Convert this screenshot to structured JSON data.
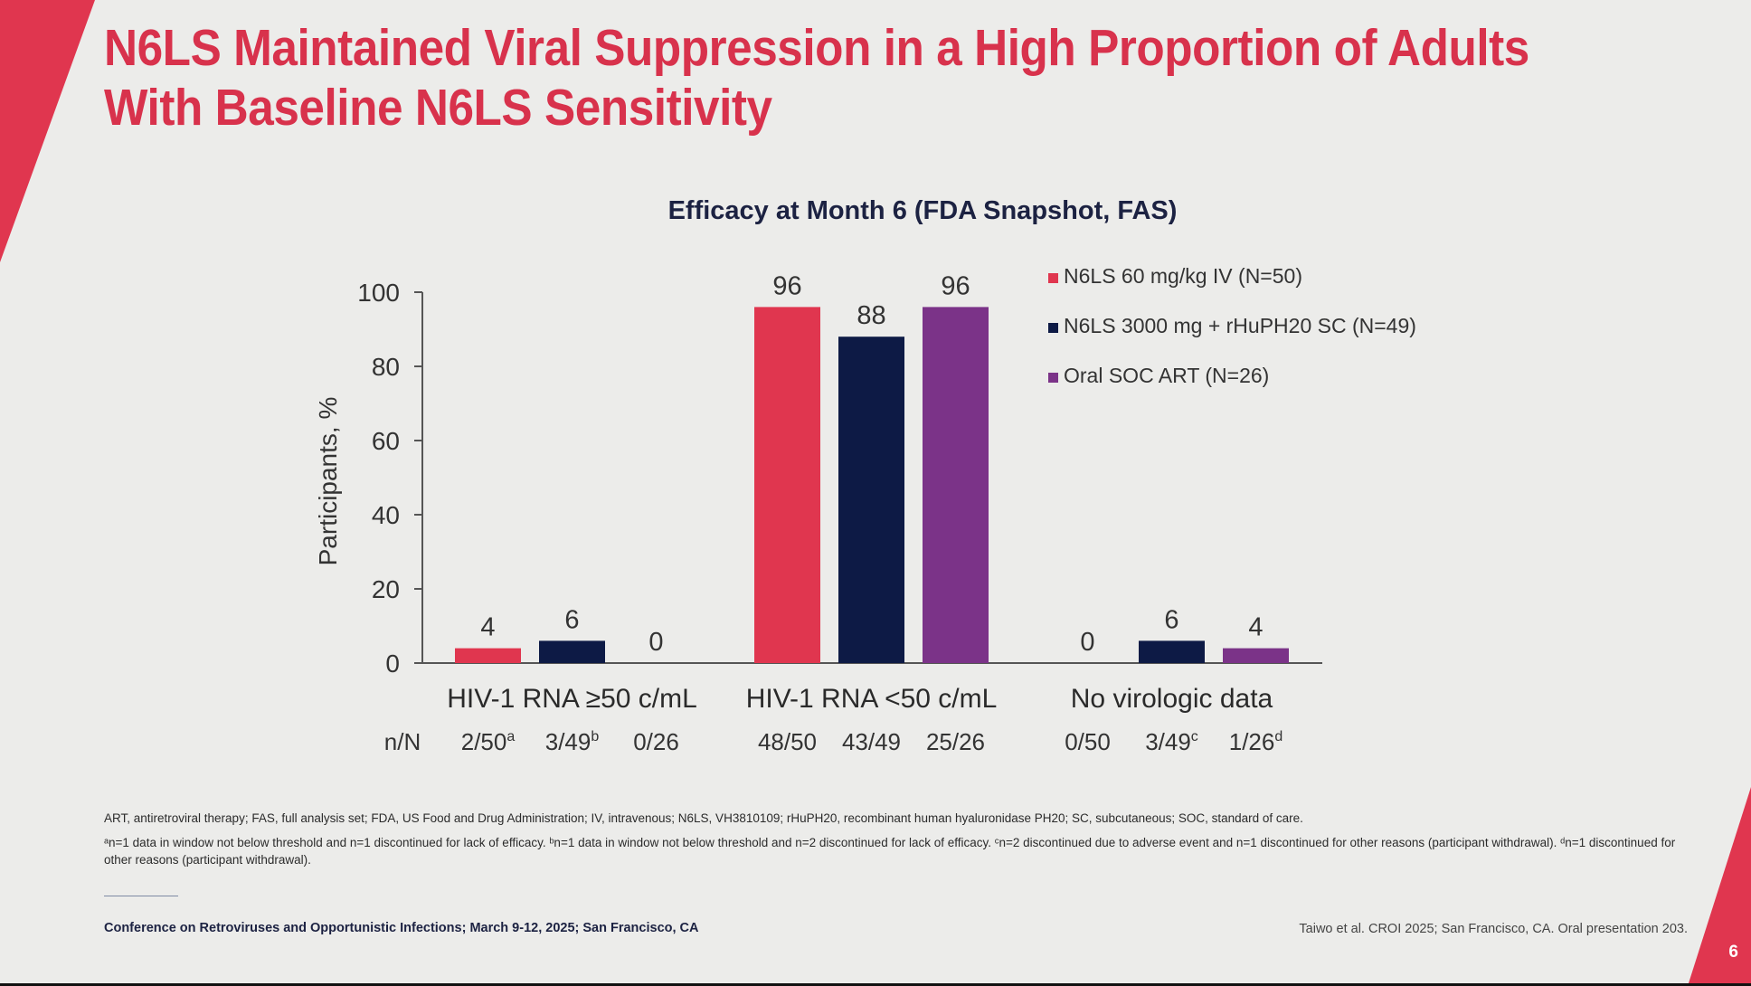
{
  "slide": {
    "title_line1": "N6LS Maintained Viral Suppression in a High Proportion of Adults",
    "title_line2": "With Baseline N6LS Sensitivity",
    "page_number": "6",
    "accent_color": "#d8324c"
  },
  "chart_data": {
    "type": "bar",
    "title": "Efficacy at Month 6 (FDA Snapshot, FAS)",
    "ylabel": "Participants, %",
    "xlabel": "",
    "ylim": [
      0,
      100
    ],
    "yticks": [
      0,
      20,
      40,
      60,
      80,
      100
    ],
    "grid": false,
    "legend_position": "top-right",
    "categories": [
      "HIV-1 RNA ≥50 c/mL",
      "HIV-1 RNA <50 c/mL",
      "No virologic data"
    ],
    "series": [
      {
        "name": "N6LS 60 mg/kg IV (N=50)",
        "color": "#e0364f",
        "values": [
          4,
          96,
          0
        ]
      },
      {
        "name": "N6LS 3000 mg + rHuPH20 SC (N=49)",
        "color": "#0d1a45",
        "values": [
          6,
          88,
          6
        ]
      },
      {
        "name": "Oral SOC ART (N=26)",
        "color": "#7b3388",
        "values": [
          0,
          96,
          4
        ]
      }
    ],
    "nn_label": "n/N",
    "nn": [
      [
        {
          "v": "2/50",
          "sup": "a"
        },
        {
          "v": "3/49",
          "sup": "b"
        },
        {
          "v": "0/26",
          "sup": ""
        }
      ],
      [
        {
          "v": "48/50",
          "sup": ""
        },
        {
          "v": "43/49",
          "sup": ""
        },
        {
          "v": "25/26",
          "sup": ""
        }
      ],
      [
        {
          "v": "0/50",
          "sup": ""
        },
        {
          "v": "3/49",
          "sup": "c"
        },
        {
          "v": "1/26",
          "sup": "d"
        }
      ]
    ]
  },
  "footnotes": {
    "abbreviations": "ART, antiretroviral therapy; FAS, full analysis set; FDA, US Food and Drug Administration; IV, intravenous; N6LS, VH3810109; rHuPH20, recombinant human hyaluronidase PH20; SC, subcutaneous; SOC, standard of care.",
    "notes": "ᵃn=1 data in window not below threshold and n=1 discontinued for lack of efficacy. ᵇn=1 data in window not below threshold and n=2 discontinued for lack of efficacy. ᶜn=2 discontinued due to adverse event and n=1 discontinued for other reasons (participant withdrawal). ᵈn=1 discontinued for other reasons (participant withdrawal)."
  },
  "footer": {
    "conference": "Conference on Retroviruses and Opportunistic Infections; March 9-12, 2025; San Francisco, CA",
    "citation": "Taiwo et al. CROI 2025; San Francisco, CA. Oral presentation 203."
  }
}
